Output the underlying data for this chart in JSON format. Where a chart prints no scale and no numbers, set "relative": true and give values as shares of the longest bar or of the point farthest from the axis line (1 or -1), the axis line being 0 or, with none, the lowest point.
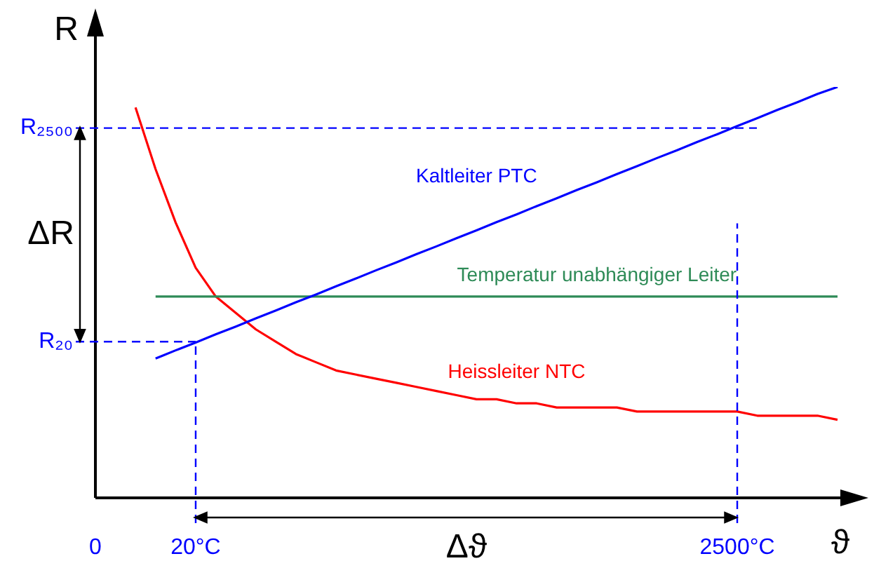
{
  "chart_data": {
    "type": "line",
    "relative": true,
    "xlabel": "ϑ",
    "ylabel": "R",
    "categories": [
      "0",
      null,
      null,
      null,
      null,
      "20°C",
      null,
      null,
      null,
      null,
      null,
      null,
      null,
      null,
      null,
      null,
      null,
      null,
      null,
      null,
      null,
      null,
      null,
      null,
      null,
      null,
      null,
      null,
      null,
      null,
      null,
      null,
      "2500°C",
      null,
      null,
      null,
      null,
      null
    ],
    "series": [
      {
        "name": "Kaltleiter PTC",
        "color": "#0000ff",
        "values": [
          null,
          null,
          null,
          0.339,
          0.359,
          0.378,
          0.398,
          0.417,
          0.437,
          0.456,
          0.476,
          0.495,
          0.515,
          0.534,
          0.554,
          0.573,
          0.593,
          0.612,
          0.632,
          0.651,
          0.671,
          0.69,
          0.71,
          0.729,
          0.749,
          0.768,
          0.788,
          0.807,
          0.827,
          0.846,
          0.866,
          0.885,
          0.905,
          0.924,
          0.944,
          0.963,
          0.983,
          1.0
        ]
      },
      {
        "name": "Temperatur unabhängiger Leiter",
        "color": "#2e8b57",
        "values": [
          null,
          null,
          null,
          0.49,
          0.49,
          0.49,
          0.49,
          0.49,
          0.49,
          0.49,
          0.49,
          0.49,
          0.49,
          0.49,
          0.49,
          0.49,
          0.49,
          0.49,
          0.49,
          0.49,
          0.49,
          0.49,
          0.49,
          0.49,
          0.49,
          0.49,
          0.49,
          0.49,
          0.49,
          0.49,
          0.49,
          0.49,
          0.49,
          0.49,
          0.49,
          0.49,
          0.49,
          0.49
        ]
      },
      {
        "name": "Heissleiter NTC",
        "color": "#ff0000",
        "values": [
          null,
          null,
          0.95,
          0.8,
          0.67,
          0.56,
          0.49,
          0.45,
          0.41,
          0.38,
          0.35,
          0.33,
          0.31,
          0.3,
          0.29,
          0.28,
          0.27,
          0.26,
          0.25,
          0.24,
          0.24,
          0.23,
          0.23,
          0.22,
          0.22,
          0.22,
          0.22,
          0.21,
          0.21,
          0.21,
          0.21,
          0.21,
          0.21,
          0.2,
          0.2,
          0.2,
          0.2,
          0.19
        ]
      }
    ],
    "ref_lines": [
      {
        "axis": "x",
        "value": "20°C",
        "color": "#0000ff",
        "line_style": "dashed"
      },
      {
        "axis": "y",
        "value": 0.38,
        "label": "R₂₀",
        "color": "#0000ff",
        "line_style": "dashed"
      },
      {
        "axis": "x",
        "value": "2500°C",
        "color": "#0000ff",
        "line_style": "dashed"
      },
      {
        "axis": "y",
        "value": 0.9,
        "label": "R₂₅₀₀",
        "color": "#0000ff",
        "line_style": "dashed"
      }
    ],
    "annotations": [
      "ΔR",
      "Δϑ"
    ],
    "marker": "none",
    "grid": false,
    "legend": false
  }
}
